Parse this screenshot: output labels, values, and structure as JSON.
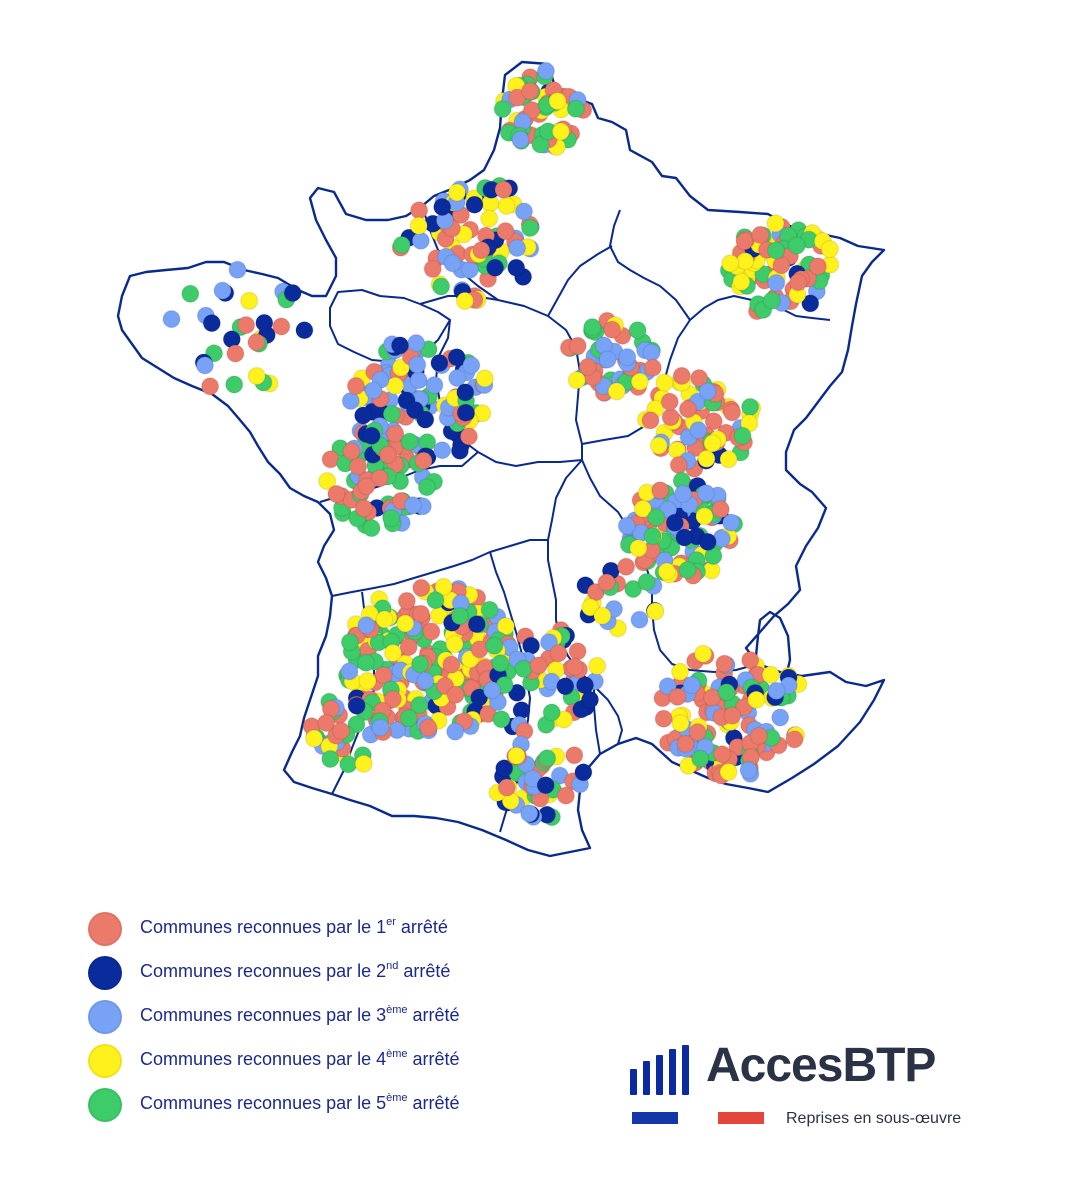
{
  "colors": {
    "arrete_1": "#ec7a6b",
    "arrete_2": "#0a2b9c",
    "arrete_3": "#77a2f6",
    "arrete_4": "#fff11c",
    "arrete_5": "#3ecb6a",
    "border": "#0a2a8c",
    "brand_text": "#2a3245",
    "flag_blue": "#1238a8",
    "flag_red": "#e5463c"
  },
  "legend": [
    {
      "prefix": "Communes reconnues par le 1",
      "sup": "er",
      "suffix": " arrêté",
      "color_key": "arrete_1"
    },
    {
      "prefix": "Communes reconnues par le 2",
      "sup": "nd",
      "suffix": " arrêté",
      "color_key": "arrete_2"
    },
    {
      "prefix": "Communes reconnues par le 3",
      "sup": "ème",
      "suffix": " arrêté",
      "color_key": "arrete_3"
    },
    {
      "prefix": "Communes reconnues par le 4",
      "sup": "ème",
      "suffix": " arrêté",
      "color_key": "arrete_4"
    },
    {
      "prefix": "Communes reconnues par le 5",
      "sup": "ème",
      "suffix": " arrêté",
      "color_key": "arrete_5"
    }
  ],
  "logo": {
    "name": "AccesBTP",
    "tagline": "Reprises en sous-œuvre"
  }
}
